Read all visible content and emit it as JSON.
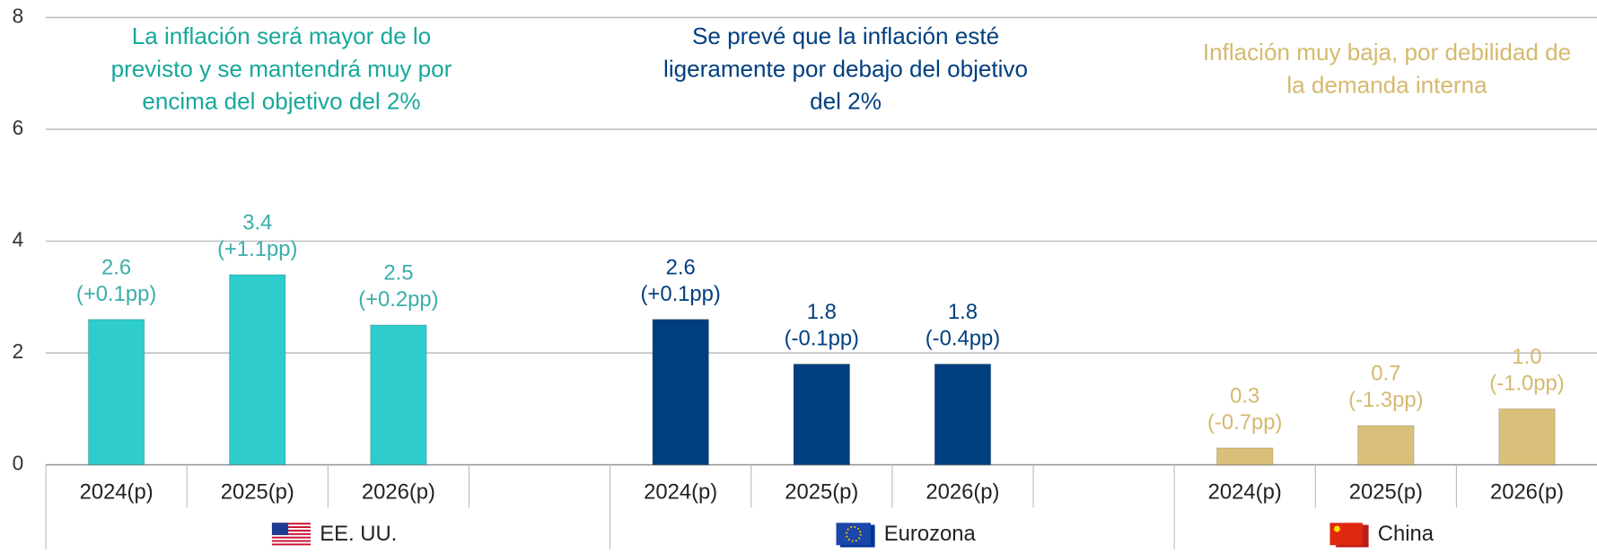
{
  "chart_data": {
    "type": "bar",
    "ylim": [
      0,
      8
    ],
    "yticks": [
      0,
      2,
      4,
      6,
      8
    ],
    "grid": true,
    "groups": [
      {
        "name": "EE. UU.",
        "color": "#2ecccc",
        "text_color": "#3aaeaa",
        "annotation_color": "#17a89c",
        "annotation": [
          "La inflación será mayor de lo",
          "previsto y se mantendrá muy por",
          "encima del objetivo del 2%"
        ],
        "categories": [
          "2024(p)",
          "2025(p)",
          "2026(p)"
        ],
        "values": [
          2.6,
          3.4,
          2.5
        ],
        "change_labels": [
          "(+0.1pp)",
          "(+1.1pp)",
          "(+0.2pp)"
        ]
      },
      {
        "name": "Eurozona",
        "color": "#003f7f",
        "text_color": "#003f7f",
        "annotation_color": "#003f7f",
        "annotation": [
          "Se prevé que la inflación esté",
          "ligeramente por debajo del objetivo",
          "del 2%"
        ],
        "categories": [
          "2024(p)",
          "2025(p)",
          "2026(p)"
        ],
        "values": [
          2.6,
          1.8,
          1.8
        ],
        "change_labels": [
          "(+0.1pp)",
          "(-0.1pp)",
          "(-0.4pp)"
        ]
      },
      {
        "name": "China",
        "color": "#d9c07a",
        "text_color": "#d6b96e",
        "annotation_color": "#d6b96e",
        "annotation": [
          "Inflación muy baja, por debilidad de",
          "la demanda interna"
        ],
        "categories": [
          "2024(p)",
          "2025(p)",
          "2026(p)"
        ],
        "values": [
          0.3,
          0.7,
          1.0
        ],
        "value_labels": [
          "0.3",
          "0.7",
          "1.0"
        ],
        "change_labels": [
          "(-0.7pp)",
          "(-1.3pp)",
          "(-1.0pp)"
        ]
      }
    ]
  }
}
